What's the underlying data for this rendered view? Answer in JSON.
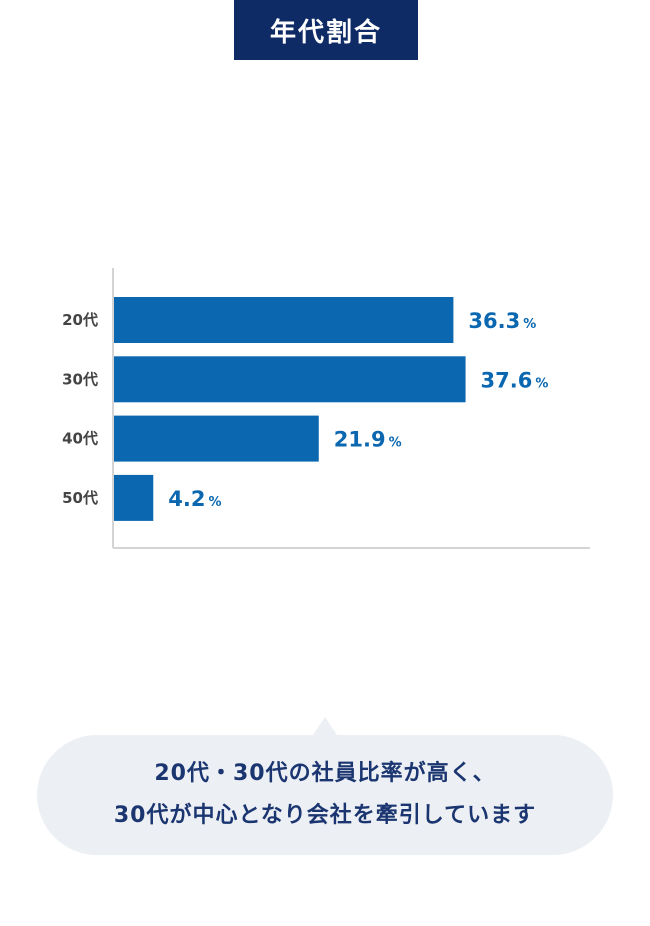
{
  "title": "年代割合",
  "chart_data": {
    "type": "bar",
    "orientation": "horizontal",
    "categories": [
      "20代",
      "30代",
      "40代",
      "50代"
    ],
    "values": [
      36.3,
      37.6,
      21.9,
      4.2
    ],
    "value_labels": [
      "36.3",
      "37.6",
      "21.9",
      "4.2"
    ],
    "unit": "%",
    "xlim": [
      0,
      50
    ],
    "grid": false,
    "bar_color": "#0a67b0",
    "label_color": "#0a67b0"
  },
  "caption": {
    "line1": "20代・30代の社員比率が高く、",
    "line2": "30代が中心となり会社を牽引しています"
  },
  "colors": {
    "title_bg": "#0f2b66",
    "bubble_bg": "#eceff3",
    "caption_text": "#1a3570"
  }
}
